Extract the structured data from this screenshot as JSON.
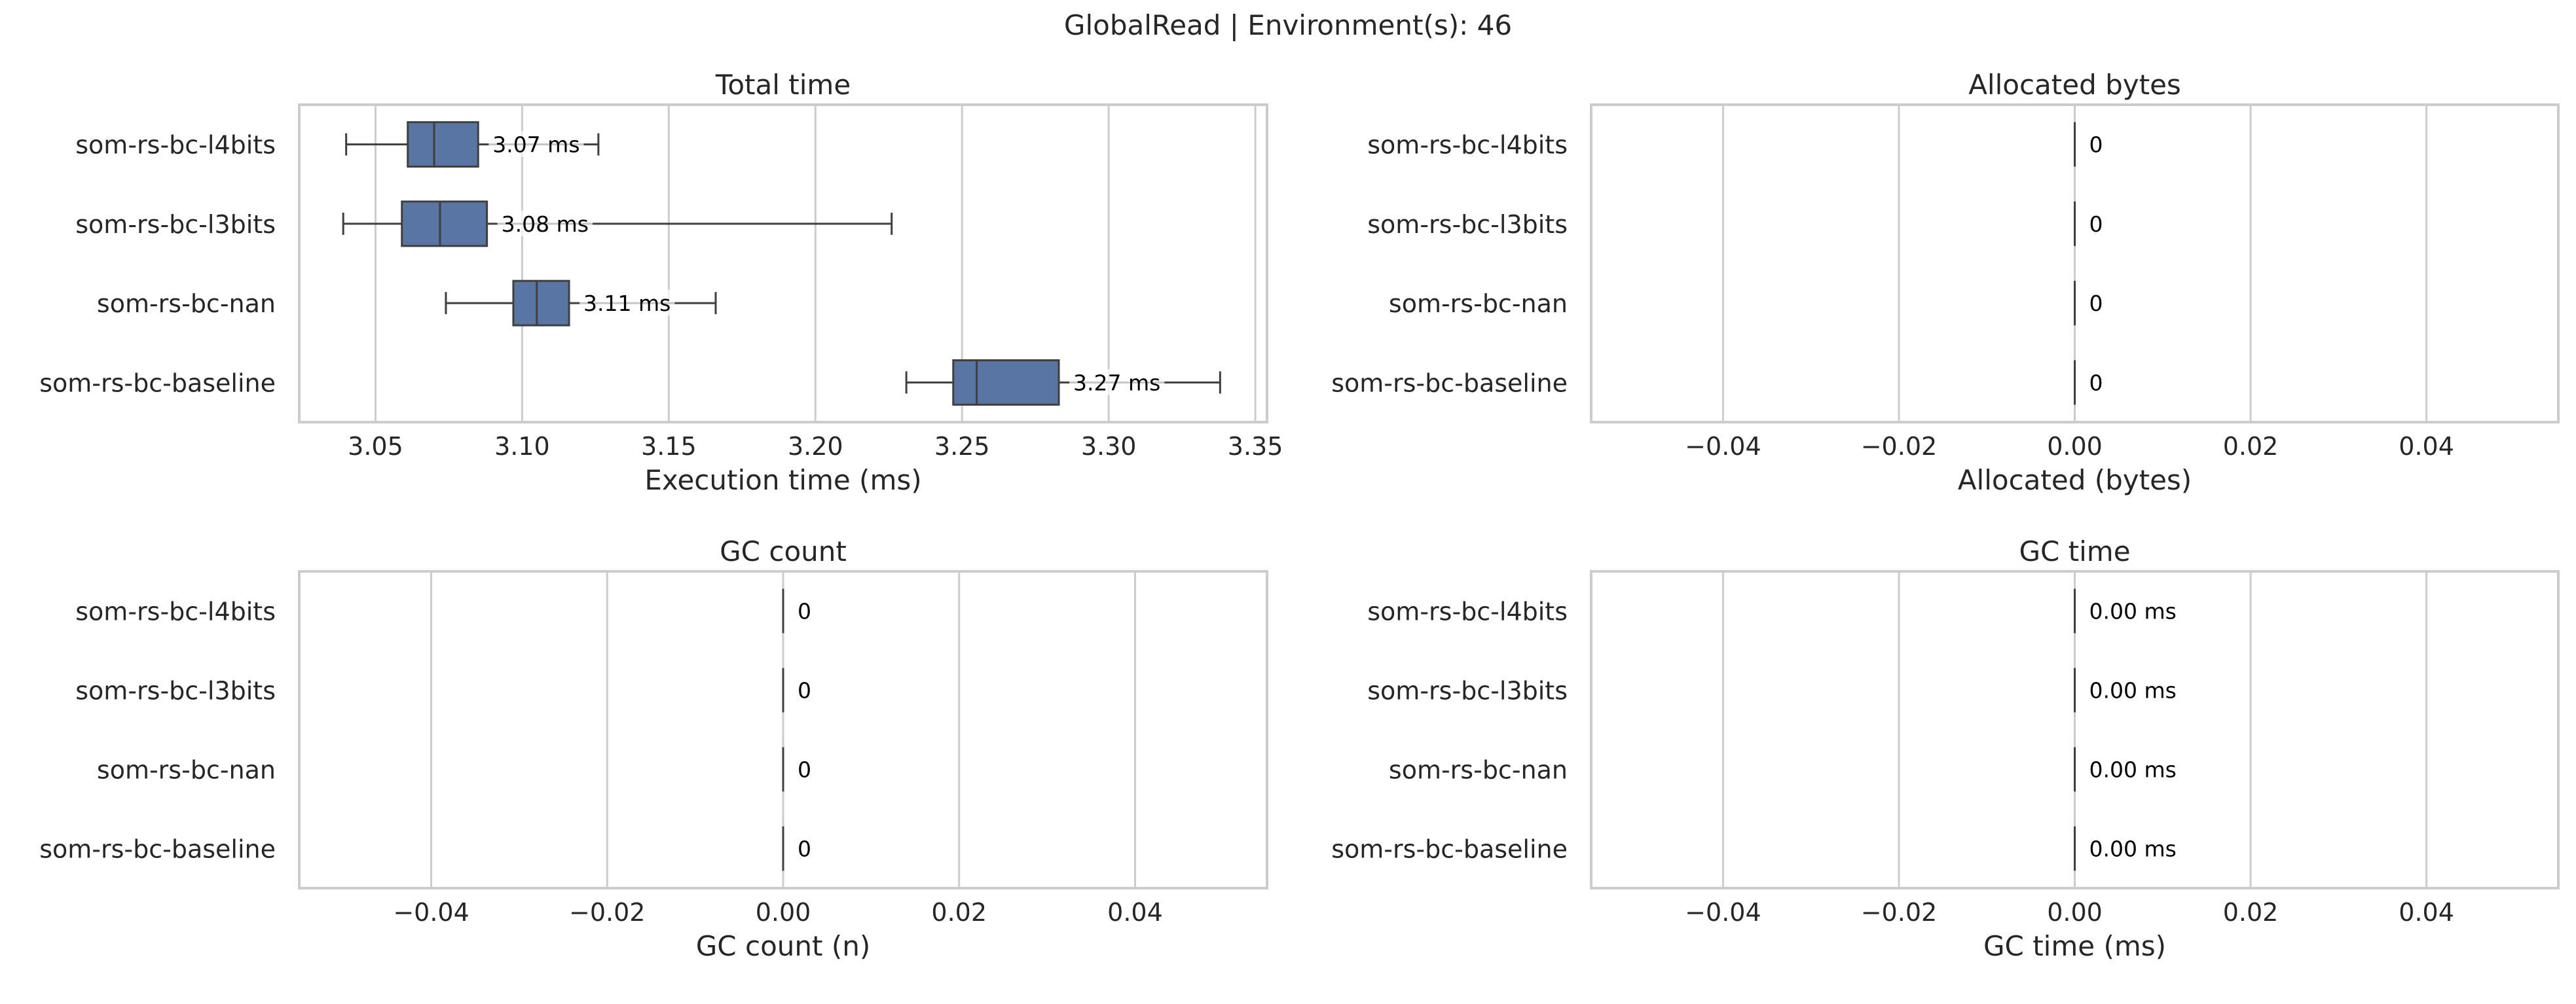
{
  "suptitle": "GlobalRead | Environment(s): 46",
  "colors": {
    "box_fill": "#5975a4",
    "box_edge": "#3f3f3f",
    "grid": "#cccccc",
    "frame": "#cccccc",
    "text": "#262626",
    "label_bg": "#ffffff"
  },
  "chart_data": [
    {
      "type": "box",
      "title": "Total time",
      "xlabel": "Execution time (ms)",
      "categories": [
        "som-rs-bc-l4bits",
        "som-rs-bc-l3bits",
        "som-rs-bc-nan",
        "som-rs-bc-baseline"
      ],
      "xlim": [
        3.024,
        3.354
      ],
      "xticks": [
        3.05,
        3.1,
        3.15,
        3.2,
        3.25,
        3.3,
        3.35
      ],
      "xtick_labels": [
        "3.05",
        "3.10",
        "3.15",
        "3.20",
        "3.25",
        "3.30",
        "3.35"
      ],
      "grid": true,
      "boxes": [
        {
          "whislo": 3.04,
          "q1": 3.061,
          "med": 3.07,
          "q3": 3.085,
          "whishi": 3.126,
          "mean_label": "3.07 ms",
          "mean": 3.073
        },
        {
          "whislo": 3.039,
          "q1": 3.059,
          "med": 3.072,
          "q3": 3.088,
          "whishi": 3.226,
          "mean_label": "3.08 ms",
          "mean": 3.082
        },
        {
          "whislo": 3.074,
          "q1": 3.097,
          "med": 3.105,
          "q3": 3.116,
          "whishi": 3.166,
          "mean_label": "3.11 ms",
          "mean": 3.108
        },
        {
          "whislo": 3.231,
          "q1": 3.247,
          "med": 3.255,
          "q3": 3.283,
          "whishi": 3.338,
          "mean_label": "3.27 ms",
          "mean": 3.267
        }
      ]
    },
    {
      "type": "box",
      "title": "Allocated bytes",
      "xlabel": "Allocated (bytes)",
      "categories": [
        "som-rs-bc-l4bits",
        "som-rs-bc-l3bits",
        "som-rs-bc-nan",
        "som-rs-bc-baseline"
      ],
      "xlim": [
        -0.055,
        0.055
      ],
      "xticks": [
        -0.04,
        -0.02,
        0.0,
        0.02,
        0.04
      ],
      "xtick_labels": [
        "−0.04",
        "−0.02",
        "0.00",
        "0.02",
        "0.04"
      ],
      "grid": true,
      "boxes": [
        {
          "whislo": 0,
          "q1": 0,
          "med": 0,
          "q3": 0,
          "whishi": 0,
          "mean_label": "0",
          "mean": 0
        },
        {
          "whislo": 0,
          "q1": 0,
          "med": 0,
          "q3": 0,
          "whishi": 0,
          "mean_label": "0",
          "mean": 0
        },
        {
          "whislo": 0,
          "q1": 0,
          "med": 0,
          "q3": 0,
          "whishi": 0,
          "mean_label": "0",
          "mean": 0
        },
        {
          "whislo": 0,
          "q1": 0,
          "med": 0,
          "q3": 0,
          "whishi": 0,
          "mean_label": "0",
          "mean": 0
        }
      ]
    },
    {
      "type": "box",
      "title": "GC count",
      "xlabel": "GC count (n)",
      "categories": [
        "som-rs-bc-l4bits",
        "som-rs-bc-l3bits",
        "som-rs-bc-nan",
        "som-rs-bc-baseline"
      ],
      "xlim": [
        -0.055,
        0.055
      ],
      "xticks": [
        -0.04,
        -0.02,
        0.0,
        0.02,
        0.04
      ],
      "xtick_labels": [
        "−0.04",
        "−0.02",
        "0.00",
        "0.02",
        "0.04"
      ],
      "grid": true,
      "boxes": [
        {
          "whislo": 0,
          "q1": 0,
          "med": 0,
          "q3": 0,
          "whishi": 0,
          "mean_label": "0",
          "mean": 0
        },
        {
          "whislo": 0,
          "q1": 0,
          "med": 0,
          "q3": 0,
          "whishi": 0,
          "mean_label": "0",
          "mean": 0
        },
        {
          "whislo": 0,
          "q1": 0,
          "med": 0,
          "q3": 0,
          "whishi": 0,
          "mean_label": "0",
          "mean": 0
        },
        {
          "whislo": 0,
          "q1": 0,
          "med": 0,
          "q3": 0,
          "whishi": 0,
          "mean_label": "0",
          "mean": 0
        }
      ]
    },
    {
      "type": "box",
      "title": "GC time",
      "xlabel": "GC time (ms)",
      "categories": [
        "som-rs-bc-l4bits",
        "som-rs-bc-l3bits",
        "som-rs-bc-nan",
        "som-rs-bc-baseline"
      ],
      "xlim": [
        -0.055,
        0.055
      ],
      "xticks": [
        -0.04,
        -0.02,
        0.0,
        0.02,
        0.04
      ],
      "xtick_labels": [
        "−0.04",
        "−0.02",
        "0.00",
        "0.02",
        "0.04"
      ],
      "grid": true,
      "boxes": [
        {
          "whislo": 0,
          "q1": 0,
          "med": 0,
          "q3": 0,
          "whishi": 0,
          "mean_label": "0.00 ms",
          "mean": 0
        },
        {
          "whislo": 0,
          "q1": 0,
          "med": 0,
          "q3": 0,
          "whishi": 0,
          "mean_label": "0.00 ms",
          "mean": 0
        },
        {
          "whislo": 0,
          "q1": 0,
          "med": 0,
          "q3": 0,
          "whishi": 0,
          "mean_label": "0.00 ms",
          "mean": 0
        },
        {
          "whislo": 0,
          "q1": 0,
          "med": 0,
          "q3": 0,
          "whishi": 0,
          "mean_label": "0.00 ms",
          "mean": 0
        }
      ]
    }
  ]
}
